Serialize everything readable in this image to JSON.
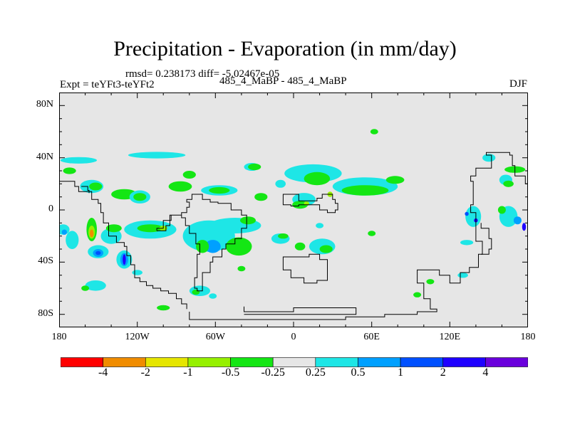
{
  "title": "Precipitation - Evaporation (in mm/day)",
  "stats_line": "rmsd= 0.238173 diff= -5.02467e-05",
  "expt_label": "Expt = teYFt3-teYFt2",
  "runs_label": "485_4_MaBP - 485_4_MaBP",
  "season": "DJF",
  "chart_data": {
    "type": "heatmap",
    "title": "Precipitation - Evaporation (in mm/day)",
    "xlabel": "",
    "ylabel": "",
    "x_range": [
      -180,
      180
    ],
    "y_range": [
      -90,
      90
    ],
    "x_tick_values": [
      -180,
      -120,
      -60,
      0,
      60,
      120,
      180
    ],
    "x_tick_labels": [
      "180",
      "120W",
      "60W",
      "0",
      "60E",
      "120E",
      "180"
    ],
    "y_tick_values": [
      80,
      40,
      0,
      -40,
      -80
    ],
    "y_tick_labels": [
      "80N",
      "40N",
      "0",
      "40S",
      "80S"
    ],
    "colorbar": {
      "colors": [
        "#ff0000",
        "#f08c00",
        "#e6e600",
        "#96f000",
        "#14e614",
        "#e6e6e6",
        "#1ee6e6",
        "#00a0ff",
        "#0050ff",
        "#1e00ff",
        "#6a00dc"
      ],
      "labels": [
        "-4",
        "-2",
        "-1",
        "-0.5",
        "-0.25",
        "0.25",
        "0.5",
        "1",
        "2",
        "4"
      ]
    },
    "background_color": "#e6e6e6",
    "regions": [
      {
        "class": 6,
        "lon": -165,
        "lat": 38,
        "rx": 14,
        "ry": 2.5
      },
      {
        "class": 4,
        "lon": -172,
        "lat": 30,
        "rx": 5,
        "ry": 2.5
      },
      {
        "class": 6,
        "lon": -155,
        "lat": 18,
        "rx": 9,
        "ry": 5
      },
      {
        "class": 4,
        "lon": -152,
        "lat": 18,
        "rx": 5,
        "ry": 3
      },
      {
        "class": 4,
        "lon": -130,
        "lat": 12,
        "rx": 10,
        "ry": 4
      },
      {
        "class": 6,
        "lon": -118,
        "lat": 10,
        "rx": 8,
        "ry": 5
      },
      {
        "class": 4,
        "lon": -118,
        "lat": 10,
        "rx": 5,
        "ry": 3
      },
      {
        "class": 4,
        "lon": -87,
        "lat": 18,
        "rx": 9,
        "ry": 4
      },
      {
        "class": 4,
        "lon": -80,
        "lat": 27,
        "rx": 5,
        "ry": 3
      },
      {
        "class": 6,
        "lon": -57,
        "lat": 15,
        "rx": 14,
        "ry": 4
      },
      {
        "class": 4,
        "lon": -57,
        "lat": 15,
        "rx": 8,
        "ry": 2.5
      },
      {
        "class": 6,
        "lon": -32,
        "lat": 33,
        "rx": 6,
        "ry": 3
      },
      {
        "class": 4,
        "lon": -30,
        "lat": 33,
        "rx": 5,
        "ry": 2.5
      },
      {
        "class": 4,
        "lon": -25,
        "lat": 10,
        "rx": 5,
        "ry": 3
      },
      {
        "class": 6,
        "lon": -10,
        "lat": 20,
        "rx": 4,
        "ry": 3
      },
      {
        "class": 6,
        "lon": 15,
        "lat": 28,
        "rx": 22,
        "ry": 7
      },
      {
        "class": 4,
        "lon": 18,
        "lat": 24,
        "rx": 10,
        "ry": 5
      },
      {
        "class": 6,
        "lon": 55,
        "lat": 18,
        "rx": 25,
        "ry": 7
      },
      {
        "class": 4,
        "lon": 55,
        "lat": 15,
        "rx": 18,
        "ry": 4
      },
      {
        "class": 4,
        "lon": 78,
        "lat": 23,
        "rx": 7,
        "ry": 3
      },
      {
        "class": 4,
        "lon": 62,
        "lat": 60,
        "rx": 3,
        "ry": 2
      },
      {
        "class": 6,
        "lon": 8,
        "lat": 8,
        "rx": 9,
        "ry": 5
      },
      {
        "class": 4,
        "lon": 5,
        "lat": 4,
        "rx": 6,
        "ry": 3
      },
      {
        "class": 3,
        "lon": 10,
        "lat": 5,
        "rx": 2,
        "ry": 1.5
      },
      {
        "class": 3,
        "lon": 28,
        "lat": 12,
        "rx": 2,
        "ry": 2
      },
      {
        "class": 6,
        "lon": -105,
        "lat": 42,
        "rx": 22,
        "ry": 2.5
      },
      {
        "class": 6,
        "lon": 150,
        "lat": 40,
        "rx": 5,
        "ry": 3
      },
      {
        "class": 4,
        "lon": 170,
        "lat": 31,
        "rx": 8,
        "ry": 2.5
      },
      {
        "class": 6,
        "lon": 163,
        "lat": 23,
        "rx": 5,
        "ry": 4
      },
      {
        "class": 4,
        "lon": 165,
        "lat": 20,
        "rx": 4,
        "ry": 2.5
      },
      {
        "class": 6,
        "lon": -177,
        "lat": -15,
        "rx": 5,
        "ry": 4
      },
      {
        "class": 7,
        "lon": -176,
        "lat": -17,
        "rx": 2,
        "ry": 2
      },
      {
        "class": 6,
        "lon": -170,
        "lat": -23,
        "rx": 5,
        "ry": 7
      },
      {
        "class": 4,
        "lon": -155,
        "lat": -15,
        "rx": 4,
        "ry": 9
      },
      {
        "class": 3,
        "lon": -155,
        "lat": -17,
        "rx": 2.5,
        "ry": 5
      },
      {
        "class": 1,
        "lon": -155,
        "lat": -18,
        "rx": 1.5,
        "ry": 3
      },
      {
        "class": 6,
        "lon": -140,
        "lat": -20,
        "rx": 8,
        "ry": 6
      },
      {
        "class": 4,
        "lon": -138,
        "lat": -14,
        "rx": 6,
        "ry": 3
      },
      {
        "class": 6,
        "lon": -150,
        "lat": -32,
        "rx": 8,
        "ry": 5
      },
      {
        "class": 7,
        "lon": -150,
        "lat": -33,
        "rx": 4,
        "ry": 3
      },
      {
        "class": 8,
        "lon": -150,
        "lat": -33,
        "rx": 2,
        "ry": 1.5
      },
      {
        "class": 6,
        "lon": -130,
        "lat": -38,
        "rx": 6,
        "ry": 7
      },
      {
        "class": 7,
        "lon": -130,
        "lat": -38,
        "rx": 3,
        "ry": 5
      },
      {
        "class": 9,
        "lon": -130,
        "lat": -38,
        "rx": 1.2,
        "ry": 4
      },
      {
        "class": 6,
        "lon": -152,
        "lat": -58,
        "rx": 8,
        "ry": 4
      },
      {
        "class": 4,
        "lon": -160,
        "lat": -60,
        "rx": 3,
        "ry": 2
      },
      {
        "class": 6,
        "lon": -110,
        "lat": -15,
        "rx": 20,
        "ry": 7
      },
      {
        "class": 4,
        "lon": -110,
        "lat": -14,
        "rx": 10,
        "ry": 3
      },
      {
        "class": 3,
        "lon": -100,
        "lat": -14,
        "rx": 3,
        "ry": 2
      },
      {
        "class": 6,
        "lon": -65,
        "lat": -20,
        "rx": 20,
        "ry": 12
      },
      {
        "class": 7,
        "lon": -62,
        "lat": -28,
        "rx": 6,
        "ry": 5
      },
      {
        "class": 4,
        "lon": -42,
        "lat": -28,
        "rx": 10,
        "ry": 7
      },
      {
        "class": 4,
        "lon": -70,
        "lat": -28,
        "rx": 5,
        "ry": 5
      },
      {
        "class": 6,
        "lon": -45,
        "lat": -12,
        "rx": 20,
        "ry": 6
      },
      {
        "class": 4,
        "lon": -35,
        "lat": -8,
        "rx": 6,
        "ry": 3
      },
      {
        "class": 6,
        "lon": -10,
        "lat": -22,
        "rx": 7,
        "ry": 4
      },
      {
        "class": 4,
        "lon": -8,
        "lat": -20,
        "rx": 4,
        "ry": 2
      },
      {
        "class": 6,
        "lon": 22,
        "lat": -28,
        "rx": 10,
        "ry": 6
      },
      {
        "class": 4,
        "lon": 25,
        "lat": -30,
        "rx": 5,
        "ry": 3
      },
      {
        "class": 4,
        "lon": 5,
        "lat": -28,
        "rx": 4,
        "ry": 3
      },
      {
        "class": 6,
        "lon": -72,
        "lat": -62,
        "rx": 8,
        "ry": 4
      },
      {
        "class": 4,
        "lon": -75,
        "lat": -63,
        "rx": 3,
        "ry": 2
      },
      {
        "class": 6,
        "lon": -62,
        "lat": -66,
        "rx": 3,
        "ry": 2
      },
      {
        "class": 4,
        "lon": -100,
        "lat": -75,
        "rx": 5,
        "ry": 2
      },
      {
        "class": 6,
        "lon": -120,
        "lat": -48,
        "rx": 4,
        "ry": 2
      },
      {
        "class": 4,
        "lon": -40,
        "lat": -45,
        "rx": 3,
        "ry": 2
      },
      {
        "class": 6,
        "lon": 138,
        "lat": -5,
        "rx": 6,
        "ry": 8
      },
      {
        "class": 8,
        "lon": 133,
        "lat": -3,
        "rx": 1.5,
        "ry": 1.5
      },
      {
        "class": 9,
        "lon": 140,
        "lat": -8,
        "rx": 1.5,
        "ry": 1.5
      },
      {
        "class": 6,
        "lon": 165,
        "lat": -5,
        "rx": 7,
        "ry": 8
      },
      {
        "class": 7,
        "lon": 172,
        "lat": -8,
        "rx": 3,
        "ry": 3
      },
      {
        "class": 9,
        "lon": 177,
        "lat": -13,
        "rx": 1.5,
        "ry": 3
      },
      {
        "class": 4,
        "lon": 160,
        "lat": 0,
        "rx": 3,
        "ry": 3
      },
      {
        "class": 6,
        "lon": 133,
        "lat": -25,
        "rx": 5,
        "ry": 2
      },
      {
        "class": 4,
        "lon": 105,
        "lat": -55,
        "rx": 3,
        "ry": 2
      },
      {
        "class": 6,
        "lon": 130,
        "lat": -50,
        "rx": 4,
        "ry": 2
      },
      {
        "class": 4,
        "lon": 60,
        "lat": -18,
        "rx": 3,
        "ry": 2
      },
      {
        "class": 4,
        "lon": 95,
        "lat": -65,
        "rx": 3,
        "ry": 2
      },
      {
        "class": 6,
        "lon": 20,
        "lat": -12,
        "rx": 3,
        "ry": 2
      }
    ],
    "coastlines": [
      [
        [
          -180,
          22
        ],
        [
          -172,
          22
        ],
        [
          -168,
          18
        ],
        [
          -165,
          14
        ],
        [
          -158,
          14
        ],
        [
          -155,
          8
        ],
        [
          -150,
          5
        ],
        [
          -148,
          -2
        ],
        [
          -146,
          -10
        ],
        [
          -142,
          -20
        ],
        [
          -136,
          -25
        ],
        [
          -130,
          -28
        ],
        [
          -128,
          -35
        ],
        [
          -125,
          -42
        ],
        [
          -122,
          -52
        ],
        [
          -118,
          -55
        ],
        [
          -113,
          -58
        ],
        [
          -108,
          -60
        ],
        [
          -102,
          -62
        ],
        [
          -96,
          -64
        ],
        [
          -90,
          -68
        ],
        [
          -86,
          -72
        ],
        [
          -82,
          -76
        ]
      ],
      [
        [
          -163,
          18
        ],
        [
          -158,
          15
        ],
        [
          -157,
          13
        ]
      ],
      [
        [
          -105,
          -16
        ],
        [
          -98,
          -12
        ],
        [
          -95,
          -4
        ],
        [
          -86,
          -2
        ],
        [
          -82,
          2
        ],
        [
          -80,
          6
        ],
        [
          -82,
          8
        ],
        [
          -78,
          12
        ],
        [
          -72,
          12
        ],
        [
          -70,
          8
        ],
        [
          -64,
          6
        ],
        [
          -58,
          5
        ],
        [
          -52,
          5
        ],
        [
          -48,
          0
        ],
        [
          -40,
          -4
        ],
        [
          -36,
          -8
        ],
        [
          -36,
          -14
        ],
        [
          -40,
          -22
        ],
        [
          -45,
          -26
        ],
        [
          -52,
          -30
        ],
        [
          -55,
          -36
        ],
        [
          -62,
          -40
        ],
        [
          -64,
          -48
        ],
        [
          -70,
          -54
        ],
        [
          -70,
          -62
        ],
        [
          -74,
          -60
        ],
        [
          -76,
          -52
        ],
        [
          -74,
          -44
        ],
        [
          -74,
          -34
        ],
        [
          -72,
          -26
        ],
        [
          -75,
          -18
        ],
        [
          -80,
          -12
        ],
        [
          -83,
          -6
        ],
        [
          -86,
          -4
        ],
        [
          -94,
          -8
        ],
        [
          -100,
          -14
        ],
        [
          -105,
          -16
        ]
      ],
      [
        [
          -8,
          5
        ],
        [
          -8,
          12
        ],
        [
          2,
          12
        ],
        [
          4,
          7
        ],
        [
          12,
          7
        ],
        [
          18,
          9
        ],
        [
          22,
          12
        ],
        [
          26,
          12
        ],
        [
          30,
          8
        ],
        [
          32,
          5
        ],
        [
          34,
          0
        ],
        [
          32,
          -2
        ],
        [
          26,
          0
        ],
        [
          20,
          4
        ],
        [
          12,
          4
        ],
        [
          4,
          3
        ],
        [
          -2,
          4
        ],
        [
          -8,
          5
        ]
      ],
      [
        [
          -8,
          -38
        ],
        [
          -8,
          -46
        ],
        [
          -2,
          -52
        ],
        [
          8,
          -56
        ],
        [
          18,
          -54
        ],
        [
          26,
          -46
        ],
        [
          26,
          -38
        ],
        [
          20,
          -34
        ],
        [
          12,
          -36
        ],
        [
          2,
          -36
        ],
        [
          -8,
          -38
        ]
      ],
      [
        [
          -80,
          -78
        ],
        [
          -80,
          -84
        ],
        [
          -50,
          -84
        ],
        [
          -20,
          -84
        ],
        [
          10,
          -84
        ],
        [
          40,
          -82
        ],
        [
          70,
          -80
        ],
        [
          95,
          -78
        ],
        [
          110,
          -76
        ],
        [
          105,
          -68
        ],
        [
          100,
          -56
        ],
        [
          95,
          -46
        ],
        [
          102,
          -46
        ],
        [
          112,
          -50
        ],
        [
          120,
          -56
        ],
        [
          128,
          -48
        ],
        [
          135,
          -44
        ],
        [
          142,
          -34
        ],
        [
          145,
          -24
        ],
        [
          140,
          -14
        ],
        [
          140,
          -2
        ],
        [
          136,
          4
        ],
        [
          138,
          12
        ],
        [
          138,
          22
        ],
        [
          136,
          26
        ],
        [
          140,
          32
        ],
        [
          150,
          32
        ],
        [
          152,
          36
        ],
        [
          152,
          42
        ],
        [
          148,
          44
        ],
        [
          158,
          44
        ],
        [
          166,
          42
        ],
        [
          168,
          34
        ],
        [
          170,
          26
        ],
        [
          178,
          20
        ],
        [
          180,
          18
        ]
      ],
      [
        [
          -38,
          -74
        ],
        [
          -38,
          -78
        ],
        [
          0,
          -78
        ],
        [
          0,
          -75
        ],
        [
          40,
          -75
        ],
        [
          48,
          -76
        ],
        [
          48,
          -80
        ],
        [
          0,
          -80
        ],
        [
          -38,
          -80
        ]
      ],
      [
        [
          144,
          -34
        ],
        [
          150,
          -30
        ],
        [
          152,
          -22
        ],
        [
          150,
          -14
        ],
        [
          144,
          -10
        ]
      ]
    ]
  }
}
